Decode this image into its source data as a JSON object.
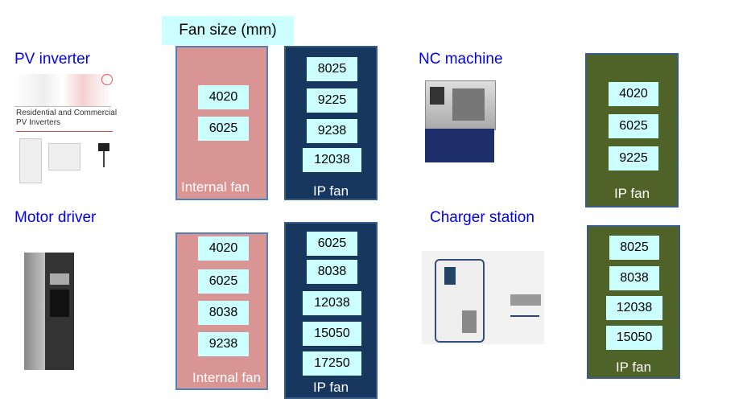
{
  "header": "Fan size (mm)",
  "sections": {
    "pv": {
      "title": "PV inverter",
      "image_caption": "Residential and Commercial PV Inverters",
      "internal": [
        "4020",
        "6025"
      ],
      "internal_label": "Internal fan",
      "ip": [
        "8025",
        "9225",
        "9238",
        "12038"
      ],
      "ip_label": "IP fan"
    },
    "motor": {
      "title": "Motor driver",
      "internal": [
        "4020",
        "6025",
        "8038",
        "9238"
      ],
      "internal_label": "Internal fan",
      "ip": [
        "6025",
        "8038",
        "12038",
        "15050",
        "17250"
      ],
      "ip_label": "IP fan"
    },
    "nc": {
      "title": "NC machine",
      "ip": [
        "4020",
        "6025",
        "9225"
      ],
      "ip_label": "IP fan"
    },
    "charger": {
      "title": "Charger station",
      "ip": [
        "8025",
        "8038",
        "12038",
        "15050"
      ],
      "ip_label": "IP fan"
    }
  },
  "colors": {
    "internal_panel": "#d99594",
    "ip_panel_navy": "#17375e",
    "ip_panel_olive": "#4f6228",
    "value_box": "#ccffff",
    "title": "#0000ee"
  }
}
